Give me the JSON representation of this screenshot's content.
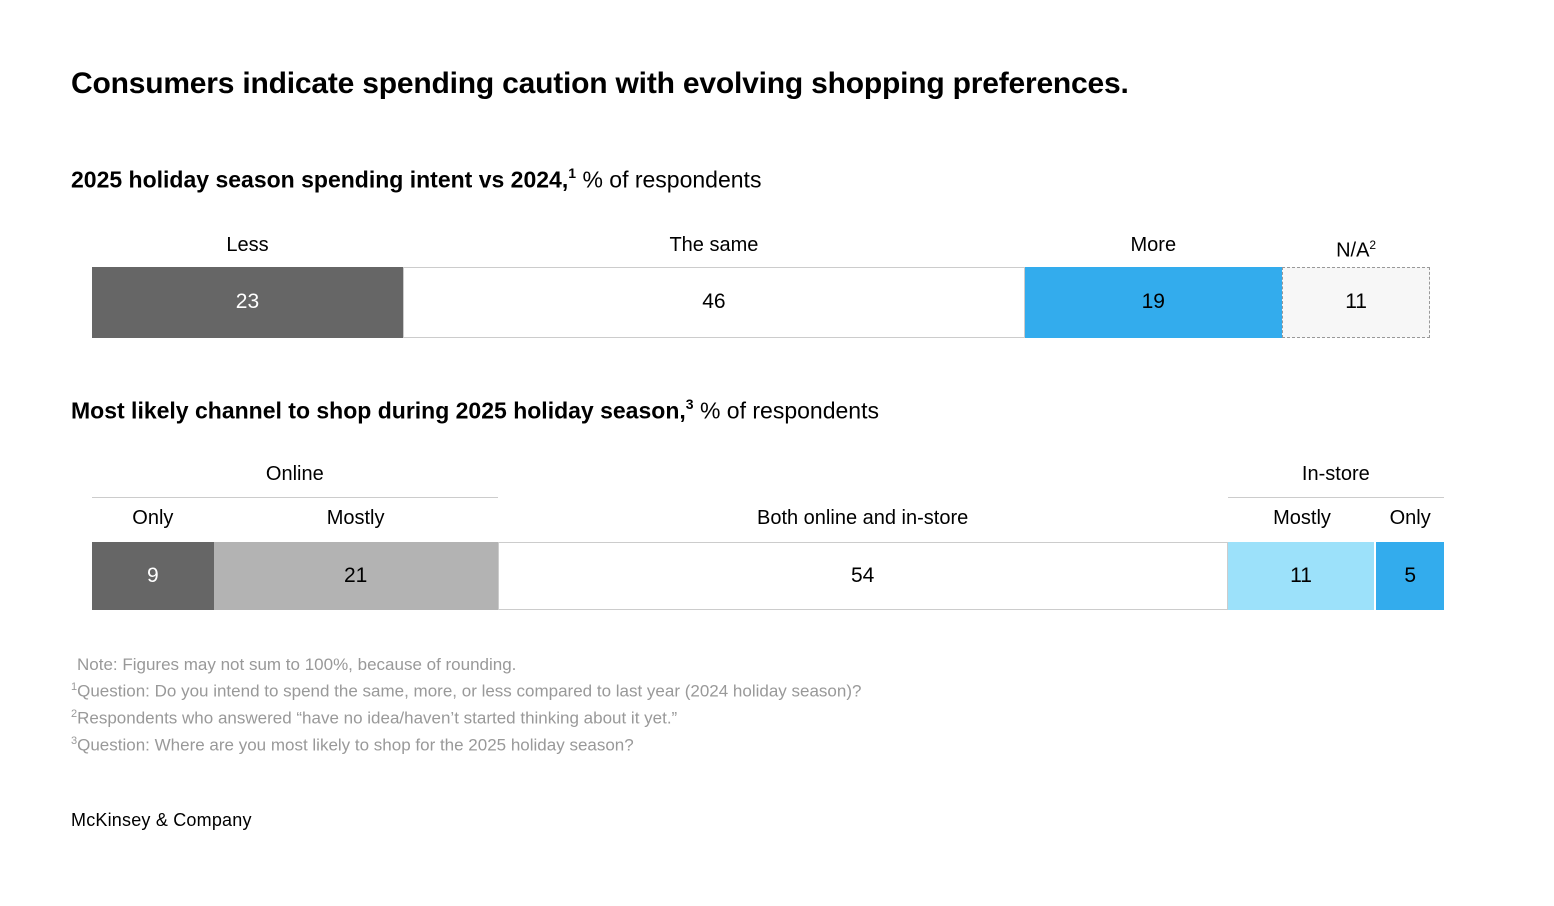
{
  "page": {
    "title": "Consumers indicate spending caution with evolving shopping preferences.",
    "source": "McKinsey & Company"
  },
  "colors": {
    "dark_gray": "#666666",
    "medium_gray": "#b3b3b3",
    "blue": "#33aced",
    "light_blue": "#9ce1fa",
    "na_fill": "#f7f7f7",
    "cell_border": "#cccccc",
    "dashed_border": "#999999",
    "group_line": "#cccccc",
    "footnote_gray": "#999999"
  },
  "chart_data": [
    {
      "type": "bar",
      "orientation": "horizontal-stacked",
      "title": "2025 holiday season spending intent vs 2024,",
      "title_footnote_marker": "1",
      "title_suffix": "% of respondents",
      "unit": "% of respondents",
      "axis_scale": [
        0,
        100
      ],
      "categories": [
        "Less",
        "The same",
        "More",
        "N/A"
      ],
      "values": [
        23,
        46,
        19,
        11
      ],
      "segments": [
        {
          "label": "Less",
          "value": 23,
          "fill": "#666666",
          "text_color": "#ffffff",
          "border": "none"
        },
        {
          "label": "The same",
          "value": 46,
          "fill": "#ffffff",
          "text_color": "#000000",
          "border": "solid"
        },
        {
          "label": "More",
          "value": 19,
          "fill": "#33aced",
          "text_color": "#000000",
          "border": "none"
        },
        {
          "label": "N/A",
          "label_footnote_marker": "2",
          "value": 11,
          "fill": "#f7f7f7",
          "text_color": "#000000",
          "border": "dashed"
        }
      ]
    },
    {
      "type": "bar",
      "orientation": "horizontal-stacked",
      "title": "Most likely channel to shop during 2025 holiday season,",
      "title_footnote_marker": "3",
      "title_suffix": "% of respondents",
      "unit": "% of respondents",
      "axis_scale": [
        0,
        100
      ],
      "categories": [
        "Online only",
        "Online mostly",
        "Both online and in-store",
        "In-store mostly",
        "In-store only"
      ],
      "values": [
        9,
        21,
        54,
        11,
        5
      ],
      "groups": [
        {
          "label": "Online",
          "width_pct": 30,
          "underline": true
        },
        {
          "label": "",
          "width_pct": 54,
          "underline": false
        },
        {
          "label": "In-store",
          "width_pct": 16,
          "underline": true
        }
      ],
      "segments": [
        {
          "label": "Only",
          "value": 9,
          "fill": "#666666",
          "text_color": "#ffffff",
          "border": "none"
        },
        {
          "label": "Mostly",
          "value": 21,
          "fill": "#b3b3b3",
          "text_color": "#000000",
          "border": "none"
        },
        {
          "label": "Both online and in-store",
          "value": 54,
          "fill": "#ffffff",
          "text_color": "#000000",
          "border": "solid"
        },
        {
          "label": "Mostly",
          "value": 11,
          "fill": "#9ce1fa",
          "text_color": "#000000",
          "border": "none",
          "separator_right": true
        },
        {
          "label": "Only",
          "value": 5,
          "fill": "#33aced",
          "text_color": "#000000",
          "border": "none"
        }
      ]
    }
  ],
  "footnotes": {
    "note": "Note: Figures may not sum to 100%, because of rounding.",
    "items": [
      {
        "marker": "1",
        "text": "Question: Do you intend to spend the same, more, or less compared to last year (2024 holiday season)?"
      },
      {
        "marker": "2",
        "text": "Respondents who answered “have no idea/haven’t started thinking about it yet.”"
      },
      {
        "marker": "3",
        "text": "Question: Where are you most likely to shop for the 2025 holiday season?"
      }
    ]
  }
}
